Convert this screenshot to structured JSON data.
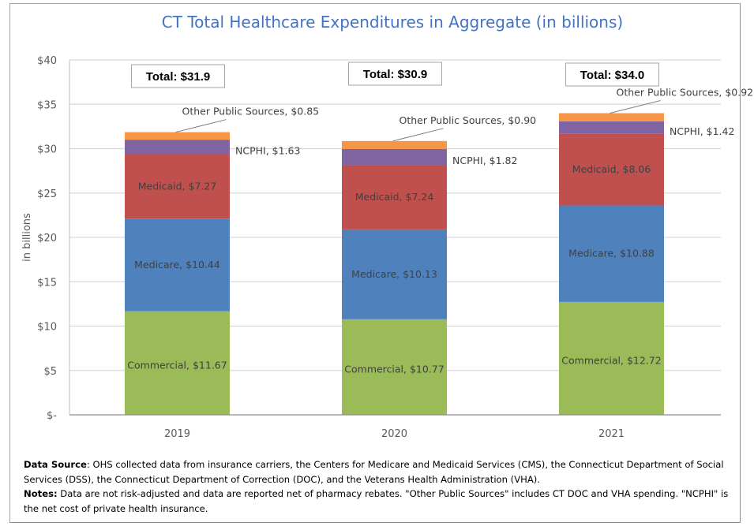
{
  "chart_data": {
    "type": "bar",
    "stacked": true,
    "title": "CT Total Healthcare Expenditures in Aggregate (in billions)",
    "xlabel": "",
    "ylabel": "in billions",
    "ylim": [
      0,
      40
    ],
    "yticks": [
      0,
      5,
      10,
      15,
      20,
      25,
      30,
      35,
      40
    ],
    "ytick_labels": [
      "$-",
      "$5",
      "$10",
      "$15",
      "$20",
      "$25",
      "$30",
      "$35",
      "$40"
    ],
    "grid": true,
    "legend": "none",
    "categories": [
      "2019",
      "2020",
      "2021"
    ],
    "series": [
      {
        "name": "Commercial",
        "color": "#9bbb59",
        "values": [
          11.67,
          10.77,
          12.72
        ],
        "labels": [
          "Commercial,  $11.67",
          "Commercial,  $10.77",
          "Commercial,  $12.72"
        ]
      },
      {
        "name": "Medicare",
        "color": "#4f81bd",
        "values": [
          10.44,
          10.13,
          10.88
        ],
        "labels": [
          "Medicare,  $10.44",
          "Medicare,  $10.13",
          "Medicare,  $10.88"
        ]
      },
      {
        "name": "Medicaid",
        "color": "#c0504d",
        "values": [
          7.27,
          7.24,
          8.06
        ],
        "labels": [
          "Medicaid,  $7.27",
          "Medicaid,  $7.24",
          "Medicaid,  $8.06"
        ]
      },
      {
        "name": "NCPHI",
        "color": "#8064a2",
        "values": [
          1.63,
          1.82,
          1.42
        ],
        "labels": [
          "NCPHI,  $1.63",
          "NCPHI,  $1.82",
          "NCPHI,  $1.42"
        ]
      },
      {
        "name": "Other Public Sources",
        "color": "#f79646",
        "values": [
          0.85,
          0.9,
          0.92
        ],
        "labels": [
          "Other Public Sources,  $0.85",
          "Other Public Sources,  $0.90",
          "Other Public Sources,  $0.92"
        ]
      }
    ],
    "totals": [
      {
        "value": 31.9,
        "label": "Total: $31.9"
      },
      {
        "value": 30.9,
        "label": "Total: $30.9"
      },
      {
        "value": 34.0,
        "label": "Total: $34.0"
      }
    ]
  },
  "notes": {
    "source_label": "Data Source",
    "source_text": ":  OHS collected data from insurance carriers, the Centers for Medicare and Medicaid Services (CMS), the Connecticut Department of Social Services (DSS), the Connecticut Department of Correction (DOC), and the Veterans Health Administration (VHA).",
    "notes_label": "Notes:",
    "notes_text": "  Data are not risk-adjusted and data are reported net of pharmacy rebates.  \"Other Public Sources\" includes CT DOC and VHA spending.  \"NCPHI\" is the net cost of private health insurance."
  }
}
